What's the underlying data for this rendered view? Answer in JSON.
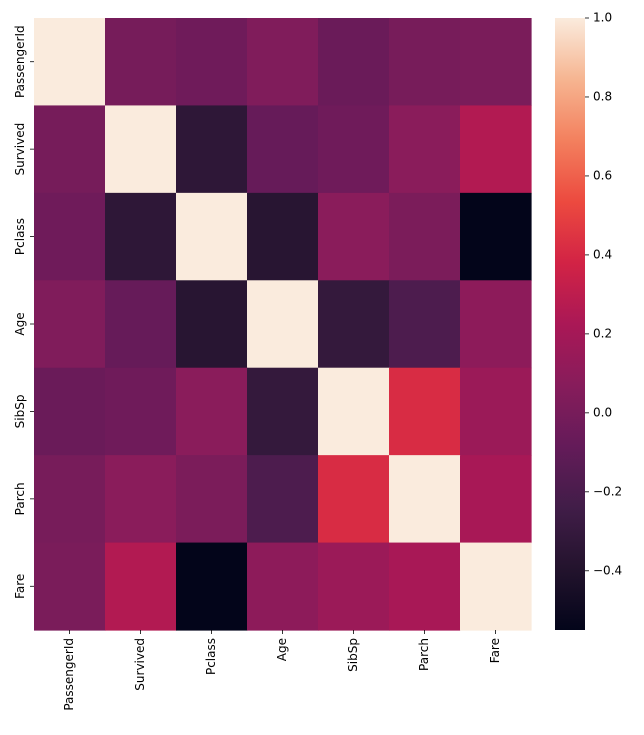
{
  "chart_data": {
    "type": "heatmap",
    "title": "",
    "xlabel": "",
    "ylabel": "",
    "categories": [
      "PassengerId",
      "Survived",
      "Pclass",
      "Age",
      "SibSp",
      "Parch",
      "Fare"
    ],
    "values": [
      [
        1.0,
        -0.005,
        -0.035,
        0.037,
        -0.058,
        -0.002,
        0.013
      ],
      [
        -0.005,
        1.0,
        -0.338,
        -0.077,
        -0.035,
        0.082,
        0.257
      ],
      [
        -0.035,
        -0.338,
        1.0,
        -0.369,
        0.083,
        0.018,
        -0.549
      ],
      [
        0.037,
        -0.077,
        -0.369,
        1.0,
        -0.308,
        -0.189,
        0.096
      ],
      [
        -0.058,
        -0.035,
        0.083,
        -0.308,
        1.0,
        0.415,
        0.16
      ],
      [
        -0.002,
        0.082,
        0.018,
        -0.189,
        0.415,
        1.0,
        0.216
      ],
      [
        0.013,
        0.257,
        -0.549,
        0.096,
        0.16,
        0.216,
        1.0
      ]
    ],
    "colorbar": {
      "vmin": -0.55,
      "vmax": 1.0,
      "ticks": [
        -0.4,
        -0.2,
        0.0,
        0.2,
        0.4,
        0.6,
        0.8,
        1.0
      ],
      "tick_labels": [
        "−0.4",
        "−0.2",
        "0.0",
        "0.2",
        "0.4",
        "0.6",
        "0.8",
        "1.0"
      ],
      "colormap": "rocket"
    }
  }
}
